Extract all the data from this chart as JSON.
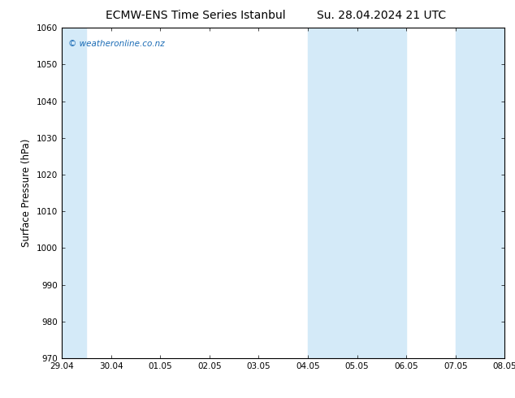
{
  "title_left": "ECMW-ENS Time Series Istanbul",
  "title_right": "Su. 28.04.2024 21 UTC",
  "ylabel": "Surface Pressure (hPa)",
  "ylim": [
    970,
    1060
  ],
  "yticks": [
    970,
    980,
    990,
    1000,
    1010,
    1020,
    1030,
    1040,
    1050,
    1060
  ],
  "x_labels": [
    "29.04",
    "30.04",
    "01.05",
    "02.05",
    "03.05",
    "04.05",
    "05.05",
    "06.05",
    "07.05",
    "08.05"
  ],
  "x_positions": [
    0,
    1,
    2,
    3,
    4,
    5,
    6,
    7,
    8,
    9
  ],
  "shaded_bands": [
    {
      "xmin": 0,
      "xmax": 0.5
    },
    {
      "xmin": 5,
      "xmax": 6
    },
    {
      "xmin": 6,
      "xmax": 7
    },
    {
      "xmin": 8,
      "xmax": 9
    }
  ],
  "band_colors": [
    "#ddeeff",
    "#c8e0f4",
    "#ddeeff",
    "#ddeeff"
  ],
  "band_color": "#d4eaf8",
  "background_color": "#ffffff",
  "plot_bg_color": "#ffffff",
  "border_color": "#000000",
  "watermark_text": "© weatheronline.co.nz",
  "watermark_color": "#1a6bb5",
  "title_fontsize": 10,
  "tick_fontsize": 7.5,
  "ylabel_fontsize": 8.5
}
